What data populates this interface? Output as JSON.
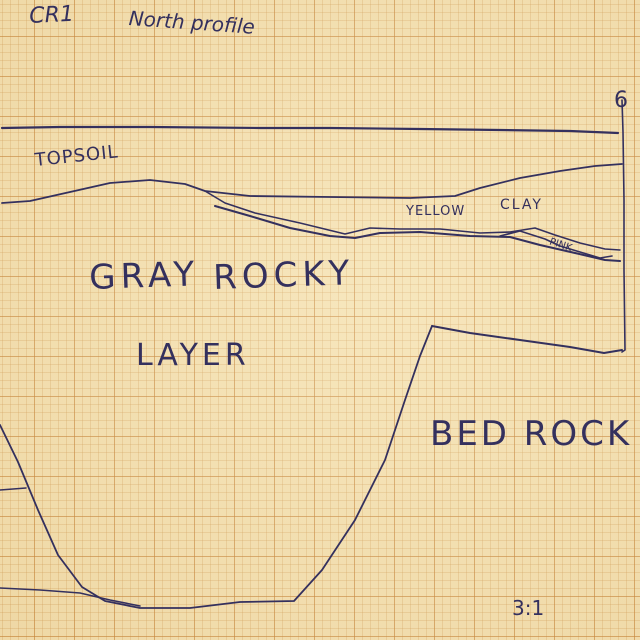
{
  "header": {
    "ref": "CR1",
    "title": "North profile",
    "tick_label": "6"
  },
  "layers": {
    "topsoil": "TOPSOIL",
    "yellow": "YELLOW",
    "clay": "CLAY",
    "pink": "PINK",
    "gray_rocky_1": "GRAY",
    "gray_rocky_2": "ROCKY",
    "gray_layer": "LAYER",
    "bedrock": "BED ROCK"
  },
  "footer": {
    "scale": "3:1"
  },
  "colors": {
    "ink": "#34305e",
    "paper": "#f4e1b2",
    "grid": "#c48034"
  }
}
